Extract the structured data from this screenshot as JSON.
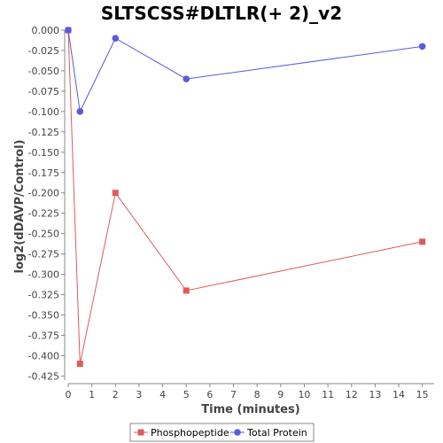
{
  "chart_data": {
    "type": "line",
    "title": "SLTSCSS#DLTLR(+ 2)_v2",
    "xlabel": "Time (minutes)",
    "ylabel": "log2(dDAVP/Control)",
    "xlim": [
      0,
      15.5
    ],
    "ylim": [
      -0.43,
      0.0
    ],
    "xticks": [
      "0",
      "1",
      "2",
      "3",
      "4",
      "5",
      "6",
      "7",
      "8",
      "9",
      "10",
      "11",
      "12",
      "13",
      "14",
      "15"
    ],
    "yticks": [
      "0.000",
      "-0.025",
      "-0.050",
      "-0.075",
      "-0.100",
      "-0.125",
      "-0.150",
      "-0.175",
      "-0.200",
      "-0.225",
      "-0.250",
      "-0.275",
      "-0.300",
      "-0.325",
      "-0.350",
      "-0.375",
      "-0.400",
      "-0.425"
    ],
    "grid": false,
    "legend_position": "bottom",
    "series": [
      {
        "name": "Phosphopeptide",
        "color": "#e05a5a",
        "marker": "square",
        "x": [
          0,
          0.5,
          2,
          5,
          15
        ],
        "y": [
          0.0,
          -0.41,
          -0.2,
          -0.32,
          -0.26
        ]
      },
      {
        "name": "Total Protein",
        "color": "#5a5ae0",
        "marker": "circle",
        "x": [
          0,
          0.5,
          2,
          5,
          15
        ],
        "y": [
          0.0,
          -0.1,
          -0.01,
          -0.06,
          -0.02
        ]
      }
    ]
  }
}
